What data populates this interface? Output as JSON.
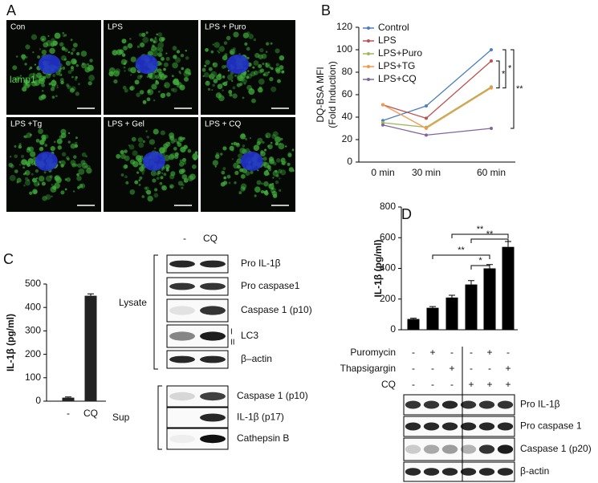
{
  "panel_labels": [
    "A",
    "B",
    "C",
    "D"
  ],
  "panel_a": {
    "images": [
      "Con",
      "LPS",
      "LPS + Puro",
      "LPS +Tg",
      "LPS + Gel",
      "LPS + CQ"
    ],
    "stain": "lamp1"
  },
  "chart_data": [
    {
      "type": "line",
      "ylabel": [
        "DQ-BSA MFI",
        "(Fold Induction)"
      ],
      "categories": [
        "0 min",
        "30 min",
        "60 min"
      ],
      "series": [
        {
          "name": "Control",
          "color": "#4a7fc1",
          "values": [
            37,
            50,
            100
          ]
        },
        {
          "name": "LPS",
          "color": "#c0504d",
          "values": [
            51,
            39,
            90
          ]
        },
        {
          "name": "LPS+Puro",
          "color": "#9bbb59",
          "values": [
            35,
            31,
            67
          ]
        },
        {
          "name": "LPS+TG",
          "color": "#f79646",
          "values": [
            51,
            30,
            66
          ]
        },
        {
          "name": "LPS+CQ",
          "color": "#8064a2",
          "values": [
            33,
            24,
            30
          ]
        }
      ],
      "ylim": [
        0,
        120
      ],
      "yticks": [
        0,
        20,
        40,
        60,
        80,
        100,
        120
      ],
      "annotations": [
        "*",
        "*",
        "**"
      ]
    },
    {
      "type": "bar",
      "ylabel": "IL-1β (pg/ml)",
      "categories": [
        "-",
        "CQ"
      ],
      "values": [
        15,
        450
      ],
      "errors": [
        3,
        8
      ],
      "color": "#222222",
      "ylim": [
        0,
        500
      ],
      "yticks": [
        0,
        100,
        200,
        300,
        400,
        500
      ]
    },
    {
      "type": "bar",
      "ylabel": "IL-1β (pg/ml)",
      "categories": [
        null,
        null,
        null,
        null,
        null,
        null
      ],
      "values": [
        70,
        143,
        210,
        295,
        400,
        540
      ],
      "errors": [
        5,
        8,
        15,
        25,
        25,
        35
      ],
      "color": "#000000",
      "ylim": [
        0,
        800
      ],
      "yticks": [
        0,
        200,
        400,
        600,
        800
      ],
      "conditions": [
        {
          "name": "Puromycin",
          "values": [
            "-",
            "+",
            "-",
            "-",
            "+",
            "-"
          ]
        },
        {
          "name": "Thapsigargin",
          "values": [
            "-",
            "-",
            "+",
            "-",
            "-",
            "+"
          ]
        },
        {
          "name": "CQ",
          "values": [
            "-",
            "-",
            "-",
            "+",
            "+",
            "+"
          ]
        }
      ],
      "annotations": [
        "**",
        "**",
        "**",
        "*"
      ]
    }
  ],
  "blot_c": {
    "lanes": [
      "-",
      "CQ"
    ],
    "lysate_label": "Lysate",
    "lysate": [
      "Pro IL-1β",
      "Pro caspase1",
      "Caspase 1 (p10)",
      "LC3",
      "β–actin"
    ],
    "lc3_forms": [
      "I",
      "II"
    ],
    "sup_label": "Sup",
    "sup": [
      "Caspase 1 (p10)",
      "IL-1β (p17)",
      "Cathepsin B"
    ]
  },
  "blot_d": {
    "rows": [
      "Pro IL-1β",
      "Pro caspase 1",
      "Caspase 1 (p20)",
      "β-actin"
    ]
  }
}
